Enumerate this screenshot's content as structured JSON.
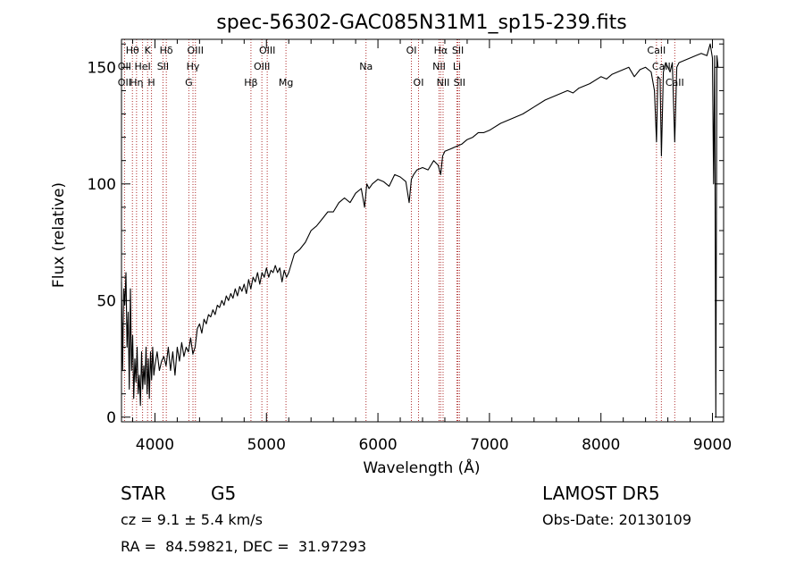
{
  "chart_data": {
    "type": "line",
    "title": "spec-56302-GAC085N31M1_sp15-239.fits",
    "xlabel": "Wavelength (Å)",
    "ylabel": "Flux (relative)",
    "xlim": [
      3700,
      9100
    ],
    "ylim": [
      -2,
      162
    ],
    "x_ticks": [
      4000,
      5000,
      6000,
      7000,
      8000,
      9000
    ],
    "x_tick_labels": [
      "4000",
      "5000",
      "6000",
      "7000",
      "8000",
      "9000"
    ],
    "y_ticks": [
      0,
      50,
      100,
      150
    ],
    "y_tick_labels": [
      "0",
      "50",
      "100",
      "150"
    ],
    "grid": false,
    "series_color": "#000000",
    "line_marker_color": "#b03030",
    "spectrum": {
      "x": [
        3700,
        3710,
        3720,
        3730,
        3740,
        3750,
        3760,
        3770,
        3780,
        3790,
        3800,
        3810,
        3820,
        3830,
        3840,
        3850,
        3860,
        3870,
        3880,
        3890,
        3900,
        3910,
        3920,
        3930,
        3940,
        3950,
        3960,
        3970,
        3980,
        3990,
        4000,
        4020,
        4040,
        4060,
        4080,
        4100,
        4120,
        4140,
        4160,
        4180,
        4200,
        4220,
        4240,
        4260,
        4280,
        4300,
        4320,
        4340,
        4360,
        4380,
        4400,
        4420,
        4440,
        4460,
        4480,
        4500,
        4520,
        4540,
        4560,
        4580,
        4600,
        4620,
        4640,
        4660,
        4680,
        4700,
        4720,
        4740,
        4760,
        4780,
        4800,
        4820,
        4840,
        4860,
        4880,
        4900,
        4920,
        4940,
        4960,
        4980,
        5000,
        5020,
        5040,
        5060,
        5080,
        5100,
        5120,
        5140,
        5160,
        5180,
        5200,
        5250,
        5300,
        5350,
        5400,
        5450,
        5500,
        5550,
        5600,
        5650,
        5700,
        5750,
        5800,
        5850,
        5880,
        5900,
        5920,
        5950,
        6000,
        6050,
        6100,
        6150,
        6200,
        6250,
        6280,
        6300,
        6320,
        6350,
        6400,
        6450,
        6500,
        6540,
        6563,
        6580,
        6600,
        6650,
        6700,
        6750,
        6800,
        6850,
        6900,
        6950,
        7000,
        7100,
        7200,
        7300,
        7400,
        7500,
        7600,
        7700,
        7750,
        7800,
        7900,
        8000,
        8050,
        8100,
        8150,
        8200,
        8250,
        8300,
        8350,
        8400,
        8450,
        8480,
        8498,
        8510,
        8530,
        8542,
        8560,
        8580,
        8600,
        8620,
        8640,
        8662,
        8680,
        8700,
        8750,
        8800,
        8850,
        8900,
        8950,
        8980,
        9000,
        9010,
        9020,
        9030,
        9040,
        9050
      ],
      "y": [
        58,
        20,
        55,
        48,
        62,
        30,
        45,
        12,
        55,
        20,
        35,
        8,
        25,
        15,
        30,
        10,
        18,
        5,
        28,
        12,
        22,
        14,
        30,
        10,
        25,
        8,
        28,
        16,
        30,
        18,
        22,
        28,
        20,
        24,
        26,
        22,
        30,
        20,
        28,
        18,
        30,
        24,
        32,
        26,
        30,
        28,
        34,
        27,
        30,
        38,
        40,
        36,
        42,
        40,
        44,
        43,
        46,
        44,
        48,
        47,
        50,
        48,
        52,
        50,
        53,
        51,
        55,
        52,
        56,
        54,
        57,
        53,
        59,
        55,
        60,
        58,
        62,
        57,
        62,
        60,
        64,
        60,
        63,
        62,
        65,
        62,
        64,
        58,
        63,
        60,
        62,
        70,
        72,
        75,
        80,
        82,
        85,
        88,
        88,
        92,
        94,
        92,
        96,
        98,
        90,
        100,
        98,
        100,
        102,
        101,
        99,
        104,
        103,
        101,
        92,
        102,
        104,
        106,
        107,
        106,
        110,
        108,
        104,
        112,
        114,
        115,
        116,
        117,
        119,
        120,
        122,
        122,
        123,
        126,
        128,
        130,
        133,
        136,
        138,
        140,
        139,
        141,
        143,
        146,
        145,
        147,
        148,
        149,
        150,
        146,
        149,
        150,
        148,
        140,
        118,
        146,
        145,
        112,
        148,
        152,
        150,
        148,
        152,
        118,
        150,
        152,
        153,
        154,
        155,
        156,
        155,
        160,
        154,
        100,
        155,
        0,
        155,
        150
      ]
    },
    "spectral_lines": [
      {
        "label": "Hθ",
        "wavelength": 3798,
        "row": 1
      },
      {
        "label": "K",
        "wavelength": 3934,
        "row": 1
      },
      {
        "label": "Hδ",
        "wavelength": 4102,
        "row": 1
      },
      {
        "label": "OIII",
        "wavelength": 4363,
        "row": 1
      },
      {
        "label": "OIII",
        "wavelength": 5007,
        "row": 1
      },
      {
        "label": "OI",
        "wavelength": 6300,
        "row": 1
      },
      {
        "label": "Hα",
        "wavelength": 6563,
        "row": 1
      },
      {
        "label": "SII",
        "wavelength": 6717,
        "row": 1
      },
      {
        "label": "CaII",
        "wavelength": 8498,
        "row": 1
      },
      {
        "label": "OII",
        "wavelength": 3727,
        "row": 2
      },
      {
        "label": "HeI",
        "wavelength": 3889,
        "row": 2
      },
      {
        "label": "SII",
        "wavelength": 4072,
        "row": 2
      },
      {
        "label": "Hγ",
        "wavelength": 4341,
        "row": 2
      },
      {
        "label": "OIII",
        "wavelength": 4959,
        "row": 2
      },
      {
        "label": "Na",
        "wavelength": 5893,
        "row": 2
      },
      {
        "label": "NII",
        "wavelength": 6548,
        "row": 2
      },
      {
        "label": "Li",
        "wavelength": 6708,
        "row": 2
      },
      {
        "label": "CaII",
        "wavelength": 8542,
        "row": 2
      },
      {
        "label": "OII",
        "wavelength": 3727,
        "row": 3
      },
      {
        "label": "Hη",
        "wavelength": 3835,
        "row": 3
      },
      {
        "label": "H",
        "wavelength": 3969,
        "row": 3
      },
      {
        "label": "G",
        "wavelength": 4304,
        "row": 3
      },
      {
        "label": "Hβ",
        "wavelength": 4861,
        "row": 3
      },
      {
        "label": "Mg",
        "wavelength": 5175,
        "row": 3
      },
      {
        "label": "OI",
        "wavelength": 6364,
        "row": 3
      },
      {
        "label": "NII",
        "wavelength": 6584,
        "row": 3
      },
      {
        "label": "SII",
        "wavelength": 6731,
        "row": 3
      },
      {
        "label": "CaII",
        "wavelength": 8662,
        "row": 3
      }
    ]
  },
  "info": {
    "class": "STAR",
    "subclass": "G5",
    "survey": "LAMOST DR5",
    "cz": "cz = 9.1 ± 5.4 km/s",
    "obs_date": "Obs-Date: 20130109",
    "coords": "RA =  84.59821, DEC =  31.97293"
  }
}
